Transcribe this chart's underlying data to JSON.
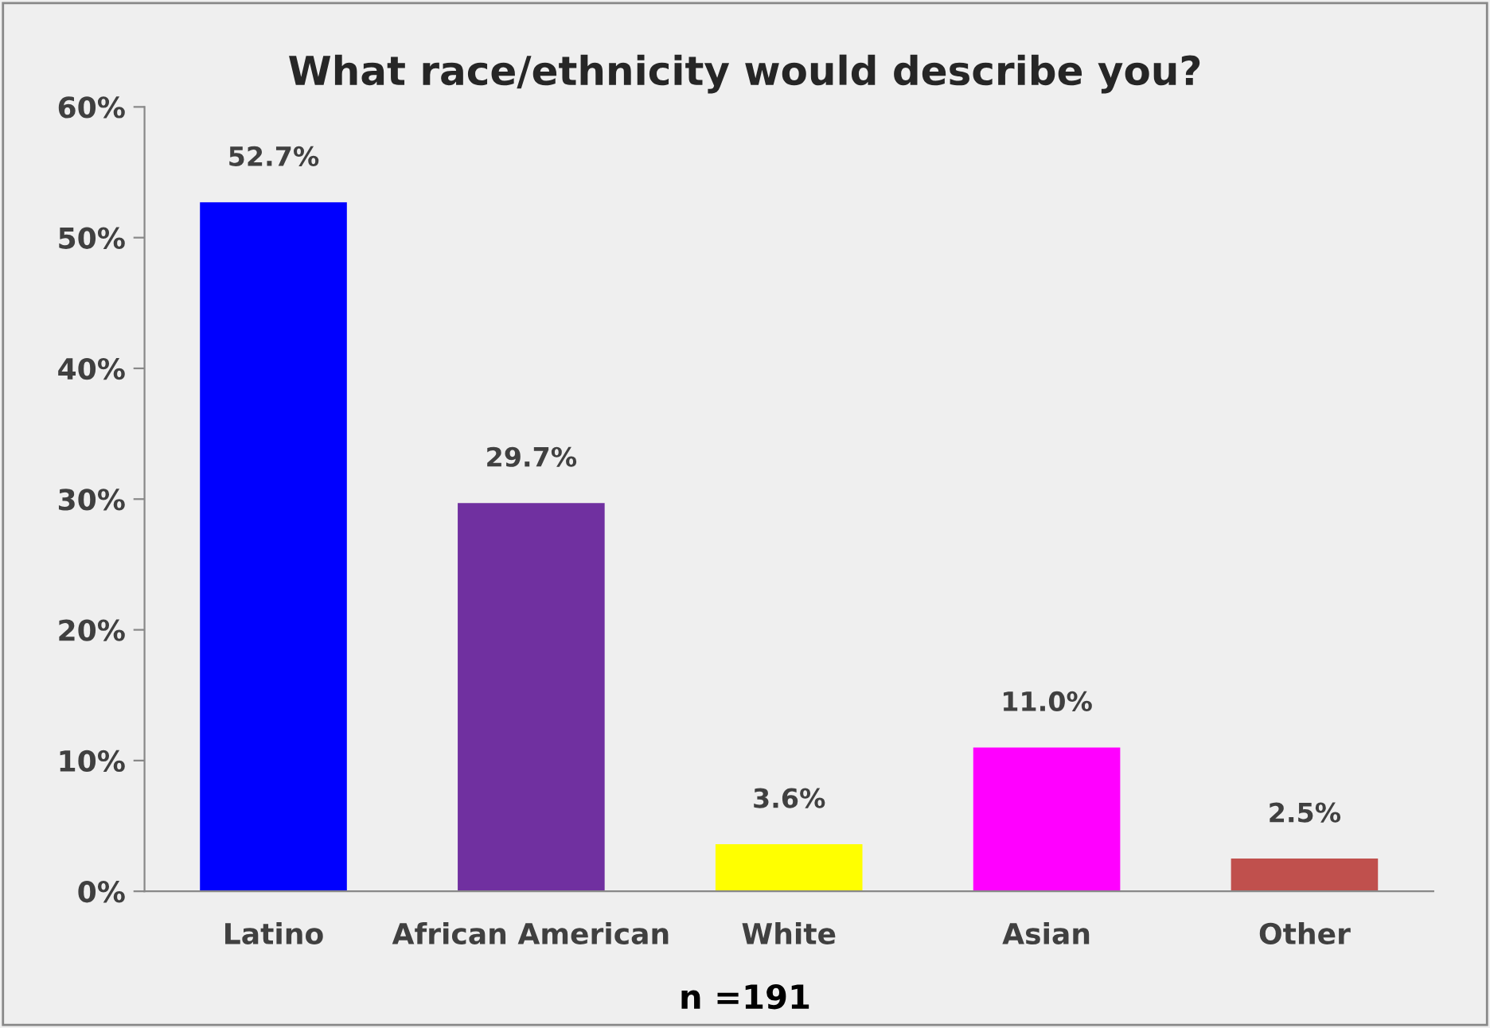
{
  "chart_data": {
    "type": "bar",
    "title": "What race/ethnicity would describe you?",
    "categories": [
      "Latino",
      "African American",
      "White",
      "Asian",
      "Other"
    ],
    "values": [
      52.7,
      29.7,
      3.6,
      11.0,
      2.5
    ],
    "colors": [
      "#0000ff",
      "#7030a0",
      "#ffff00",
      "#ff00ff",
      "#c0504d"
    ],
    "value_labels": [
      "52.7%",
      "29.7%",
      "3.6%",
      "11.0%",
      "2.5%"
    ],
    "ylim": [
      0,
      60
    ],
    "yticks": [
      {
        "value": 0,
        "label": "0%"
      },
      {
        "value": 10,
        "label": "10%"
      },
      {
        "value": 20,
        "label": "20%"
      },
      {
        "value": 30,
        "label": "30%"
      },
      {
        "value": 40,
        "label": "40%"
      },
      {
        "value": 50,
        "label": "50%"
      },
      {
        "value": 60,
        "label": "60%"
      }
    ],
    "grid": false,
    "legend": false,
    "annotations": [
      "n =191"
    ]
  }
}
